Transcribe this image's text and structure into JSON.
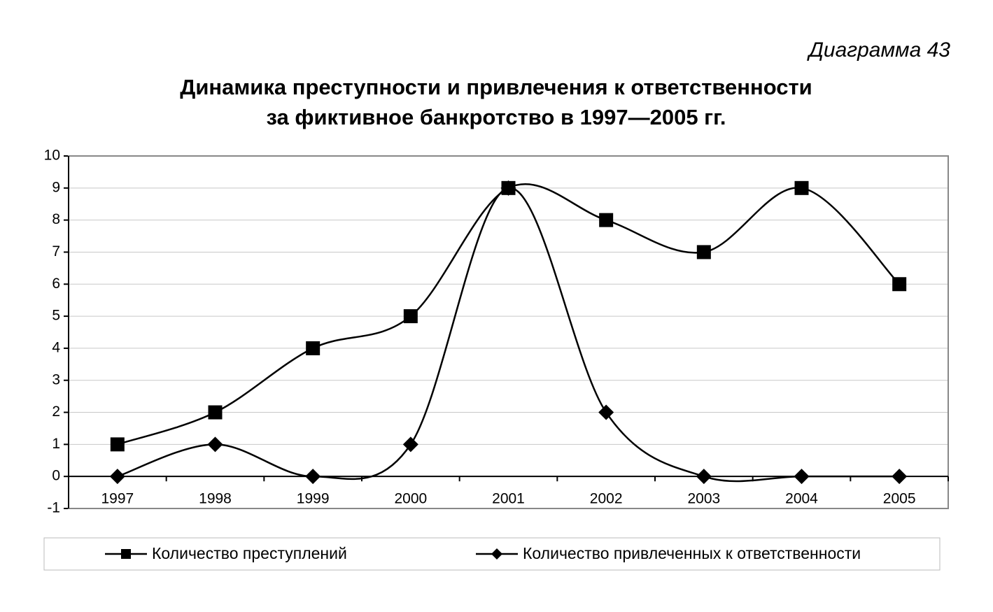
{
  "chart_data": {
    "type": "line",
    "caption": "Диаграмма 43",
    "title": [
      "Динамика преступности и привлечения к ответственности",
      "за фиктивное банкротство в 1997—2005 гг."
    ],
    "categories": [
      "1997",
      "1998",
      "1999",
      "2000",
      "2001",
      "2002",
      "2003",
      "2004",
      "2005"
    ],
    "series": [
      {
        "name": "Количество преступлений",
        "color": "#000000",
        "marker": "square",
        "values": [
          1,
          2,
          4,
          5,
          9,
          8,
          7,
          9,
          6
        ]
      },
      {
        "name": "Количество привлеченных к ответственности",
        "color": "#000000",
        "marker": "diamond",
        "values": [
          0,
          1,
          0,
          1,
          9,
          2,
          0,
          0,
          0
        ]
      }
    ],
    "ylim": [
      -1,
      10
    ],
    "yticks": [
      -1,
      0,
      1,
      2,
      3,
      4,
      5,
      6,
      7,
      8,
      9,
      10
    ],
    "grid": true,
    "smooth": true,
    "legend": "bottom"
  }
}
